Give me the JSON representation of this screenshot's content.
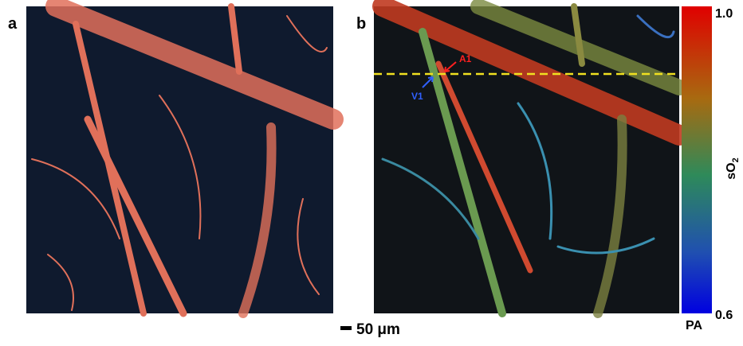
{
  "panels": [
    {
      "label": "a"
    },
    {
      "label": "b",
      "annotations": [
        {
          "label": "A1"
        },
        {
          "label": "V1"
        }
      ]
    }
  ],
  "colorbar": {
    "top": "1.0",
    "bottom": "0.6",
    "title": "sO",
    "title_subscript": "2",
    "caption": "PA"
  },
  "scale_bar": {
    "label": "50 μm"
  }
}
